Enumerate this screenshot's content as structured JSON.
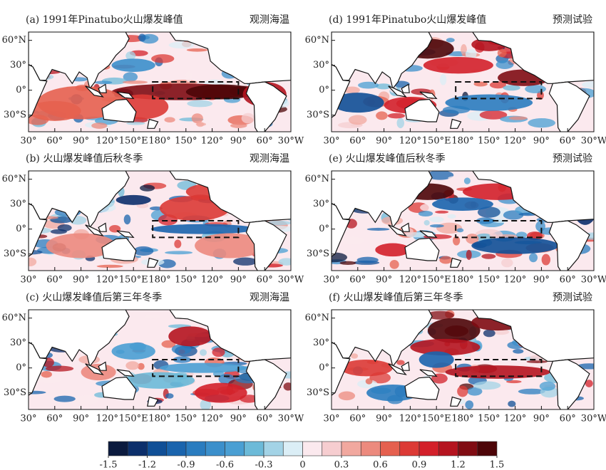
{
  "panels": [
    {
      "title": "(a) 1991年Pinatubo火山爆发峰值",
      "source": "观测海温"
    },
    {
      "title": "(b) 火山爆发峰值后秋冬季",
      "source": "观测海温"
    },
    {
      "title": "(c) 火山爆发峰值后第三年冬季",
      "source": "观测海温"
    },
    {
      "title": "(d) 1991年Pinatubo火山爆发峰值",
      "source": "预测试验"
    },
    {
      "title": "(e) 火山爆发峰值后秋冬季",
      "source": "预测试验"
    },
    {
      "title": "(f) 火山爆发峰值后第三年冬季",
      "source": "预测试验"
    }
  ],
  "lat_labels": [
    "60°N",
    "30°",
    "0°",
    "30°S"
  ],
  "lon_labels": [
    "30°",
    "60°",
    "90°",
    "120°",
    "150°E",
    "180°",
    "150°",
    "120°",
    "90°",
    "60°",
    "30°W"
  ],
  "colorbar": {
    "lim": [
      -1.5,
      1.5
    ],
    "ticks": [
      -1.5,
      -1.2,
      -0.9,
      -0.6,
      -0.3,
      0,
      0.3,
      0.6,
      0.9,
      1.2,
      1.5
    ],
    "colors": [
      "#0b1a3e",
      "#0c2f6b",
      "#104f96",
      "#1a64ad",
      "#2a7cbf",
      "#3b8fcb",
      "#4a9fd3",
      "#6cbad8",
      "#a3d3e6",
      "#dbeef6",
      "#fbe9ee",
      "#f6cdd0",
      "#f1a89f",
      "#ec8a7e",
      "#e5604f",
      "#dc3a35",
      "#d3202a",
      "#b5141f",
      "#800c13",
      "#4d0508"
    ]
  }
}
